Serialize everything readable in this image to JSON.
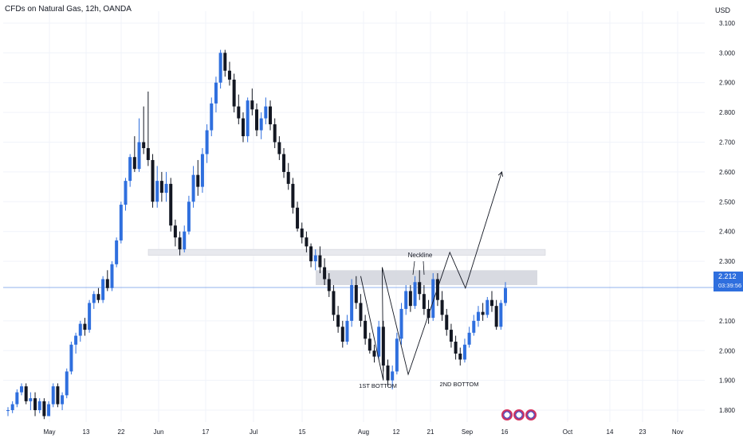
{
  "title": "CFDs on Natural Gas, 12h, OANDA",
  "currency": "USD",
  "colors": {
    "up": "#2f6fde",
    "down": "#131722",
    "grid": "#f0f3fa",
    "zone": "#d1d4dc",
    "last_price_line": "#2f6fde",
    "drawing": "#131722"
  },
  "last_price": {
    "value": "2.212",
    "countdown": "03:39:56"
  },
  "annotations": {
    "neckline": "Neckline",
    "first_bottom": "1ST BOTTOM",
    "second_bottom": "2ND BOTTOM"
  },
  "icons": [
    "flag-icon-us",
    "flag-icon-us",
    "flag-icon-us"
  ],
  "chart_data": {
    "type": "candlestick",
    "ylim": [
      1.76,
      3.14
    ],
    "y_ticks": [
      "3.100",
      "3.000",
      "2.900",
      "2.800",
      "2.700",
      "2.600",
      "2.500",
      "2.400",
      "2.300",
      "2.100",
      "2.000",
      "1.900",
      "1.800"
    ],
    "x_ticks": [
      "May",
      "13",
      "22",
      "Jun",
      "17",
      "Jul",
      "15",
      "Aug",
      "12",
      "21",
      "Sep",
      "16",
      "Oct",
      "14",
      "23",
      "Nov"
    ],
    "grid": true,
    "resistance_zone_upper": [
      2.32,
      2.34
    ],
    "neckline_zone": [
      2.22,
      2.27
    ],
    "last_price_line": 2.212,
    "candles": [
      [
        1.8,
        1.81,
        1.78,
        1.8
      ],
      [
        1.8,
        1.83,
        1.79,
        1.82
      ],
      [
        1.82,
        1.87,
        1.81,
        1.86
      ],
      [
        1.86,
        1.89,
        1.85,
        1.88
      ],
      [
        1.88,
        1.89,
        1.82,
        1.83
      ],
      [
        1.83,
        1.86,
        1.8,
        1.84
      ],
      [
        1.84,
        1.86,
        1.78,
        1.8
      ],
      [
        1.8,
        1.84,
        1.79,
        1.83
      ],
      [
        1.83,
        1.84,
        1.77,
        1.78
      ],
      [
        1.78,
        1.83,
        1.78,
        1.82
      ],
      [
        1.82,
        1.89,
        1.81,
        1.88
      ],
      [
        1.88,
        1.89,
        1.81,
        1.82
      ],
      [
        1.82,
        1.86,
        1.8,
        1.85
      ],
      [
        1.85,
        1.94,
        1.84,
        1.93
      ],
      [
        1.93,
        2.03,
        1.92,
        2.02
      ],
      [
        2.02,
        2.06,
        1.99,
        2.05
      ],
      [
        2.05,
        2.1,
        2.03,
        2.09
      ],
      [
        2.09,
        2.11,
        2.05,
        2.07
      ],
      [
        2.07,
        2.17,
        2.06,
        2.16
      ],
      [
        2.16,
        2.2,
        2.14,
        2.19
      ],
      [
        2.19,
        2.21,
        2.16,
        2.17
      ],
      [
        2.17,
        2.25,
        2.16,
        2.24
      ],
      [
        2.24,
        2.27,
        2.2,
        2.21
      ],
      [
        2.21,
        2.3,
        2.2,
        2.29
      ],
      [
        2.29,
        2.38,
        2.28,
        2.37
      ],
      [
        2.37,
        2.5,
        2.36,
        2.49
      ],
      [
        2.49,
        2.58,
        2.47,
        2.57
      ],
      [
        2.57,
        2.66,
        2.55,
        2.65
      ],
      [
        2.65,
        2.72,
        2.6,
        2.61
      ],
      [
        2.61,
        2.78,
        2.6,
        2.7
      ],
      [
        2.7,
        2.82,
        2.66,
        2.68
      ],
      [
        2.68,
        2.87,
        2.62,
        2.64
      ],
      [
        2.64,
        2.66,
        2.48,
        2.5
      ],
      [
        2.5,
        2.62,
        2.48,
        2.57
      ],
      [
        2.57,
        2.6,
        2.5,
        2.53
      ],
      [
        2.53,
        2.6,
        2.5,
        2.56
      ],
      [
        2.56,
        2.58,
        2.4,
        2.42
      ],
      [
        2.42,
        2.44,
        2.35,
        2.38
      ],
      [
        2.38,
        2.4,
        2.32,
        2.34
      ],
      [
        2.34,
        2.42,
        2.33,
        2.4
      ],
      [
        2.4,
        2.52,
        2.39,
        2.5
      ],
      [
        2.5,
        2.62,
        2.48,
        2.59
      ],
      [
        2.59,
        2.64,
        2.52,
        2.55
      ],
      [
        2.55,
        2.68,
        2.53,
        2.66
      ],
      [
        2.66,
        2.76,
        2.63,
        2.74
      ],
      [
        2.74,
        2.85,
        2.72,
        2.83
      ],
      [
        2.83,
        2.92,
        2.8,
        2.9
      ],
      [
        2.9,
        3.01,
        2.88,
        3.0
      ],
      [
        3.0,
        3.01,
        2.92,
        2.94
      ],
      [
        2.94,
        2.97,
        2.89,
        2.91
      ],
      [
        2.91,
        2.93,
        2.8,
        2.82
      ],
      [
        2.82,
        2.86,
        2.76,
        2.78
      ],
      [
        2.78,
        2.8,
        2.7,
        2.72
      ],
      [
        2.72,
        2.85,
        2.7,
        2.84
      ],
      [
        2.84,
        2.88,
        2.79,
        2.81
      ],
      [
        2.81,
        2.83,
        2.72,
        2.74
      ],
      [
        2.74,
        2.8,
        2.71,
        2.78
      ],
      [
        2.78,
        2.85,
        2.76,
        2.82
      ],
      [
        2.82,
        2.84,
        2.74,
        2.76
      ],
      [
        2.76,
        2.78,
        2.68,
        2.7
      ],
      [
        2.7,
        2.72,
        2.64,
        2.66
      ],
      [
        2.66,
        2.68,
        2.58,
        2.6
      ],
      [
        2.6,
        2.63,
        2.54,
        2.56
      ],
      [
        2.56,
        2.58,
        2.46,
        2.48
      ],
      [
        2.48,
        2.5,
        2.4,
        2.41
      ],
      [
        2.41,
        2.43,
        2.36,
        2.38
      ],
      [
        2.38,
        2.4,
        2.33,
        2.35
      ],
      [
        2.35,
        2.36,
        2.28,
        2.3
      ],
      [
        2.3,
        2.34,
        2.27,
        2.32
      ],
      [
        2.32,
        2.35,
        2.26,
        2.28
      ],
      [
        2.28,
        2.31,
        2.22,
        2.24
      ],
      [
        2.24,
        2.26,
        2.18,
        2.2
      ],
      [
        2.2,
        2.22,
        2.1,
        2.12
      ],
      [
        2.12,
        2.15,
        2.06,
        2.08
      ],
      [
        2.08,
        2.1,
        2.01,
        2.03
      ],
      [
        2.03,
        2.12,
        2.02,
        2.1
      ],
      [
        2.1,
        2.24,
        2.08,
        2.22
      ],
      [
        2.22,
        2.25,
        2.14,
        2.16
      ],
      [
        2.16,
        2.19,
        2.08,
        2.1
      ],
      [
        2.1,
        2.12,
        2.02,
        2.04
      ],
      [
        2.04,
        2.06,
        1.99,
        2.0
      ],
      [
        2.0,
        2.02,
        1.96,
        1.98
      ],
      [
        1.98,
        2.1,
        1.97,
        2.08
      ],
      [
        2.08,
        2.1,
        1.93,
        1.95
      ],
      [
        1.95,
        1.97,
        1.88,
        1.9
      ],
      [
        1.9,
        1.95,
        1.87,
        1.93
      ],
      [
        1.93,
        2.06,
        1.92,
        2.04
      ],
      [
        2.04,
        2.16,
        2.02,
        2.14
      ],
      [
        2.14,
        2.22,
        2.12,
        2.2
      ],
      [
        2.2,
        2.22,
        2.13,
        2.15
      ],
      [
        2.15,
        2.25,
        2.14,
        2.23
      ],
      [
        2.23,
        2.27,
        2.17,
        2.19
      ],
      [
        2.19,
        2.22,
        2.12,
        2.14
      ],
      [
        2.14,
        2.17,
        2.09,
        2.11
      ],
      [
        2.11,
        2.26,
        2.1,
        2.24
      ],
      [
        2.24,
        2.26,
        2.15,
        2.17
      ],
      [
        2.17,
        2.2,
        2.1,
        2.12
      ],
      [
        2.12,
        2.14,
        2.05,
        2.07
      ],
      [
        2.07,
        2.09,
        2.01,
        2.03
      ],
      [
        2.03,
        2.05,
        1.97,
        1.99
      ],
      [
        1.99,
        2.01,
        1.95,
        1.97
      ],
      [
        1.97,
        2.04,
        1.96,
        2.02
      ],
      [
        2.02,
        2.08,
        2.01,
        2.06
      ],
      [
        2.06,
        2.12,
        2.05,
        2.1
      ],
      [
        2.1,
        2.15,
        2.08,
        2.13
      ],
      [
        2.13,
        2.16,
        2.1,
        2.12
      ],
      [
        2.12,
        2.18,
        2.11,
        2.17
      ],
      [
        2.17,
        2.2,
        2.13,
        2.15
      ],
      [
        2.15,
        2.17,
        2.07,
        2.08
      ],
      [
        2.08,
        2.17,
        2.07,
        2.16
      ],
      [
        2.16,
        2.23,
        2.15,
        2.21
      ]
    ],
    "projection_path": [
      [
        0,
        1.91
      ],
      [
        5,
        2.28
      ],
      [
        10,
        1.92
      ],
      [
        18,
        2.33
      ],
      [
        21,
        2.21
      ],
      [
        28,
        2.6
      ]
    ]
  }
}
